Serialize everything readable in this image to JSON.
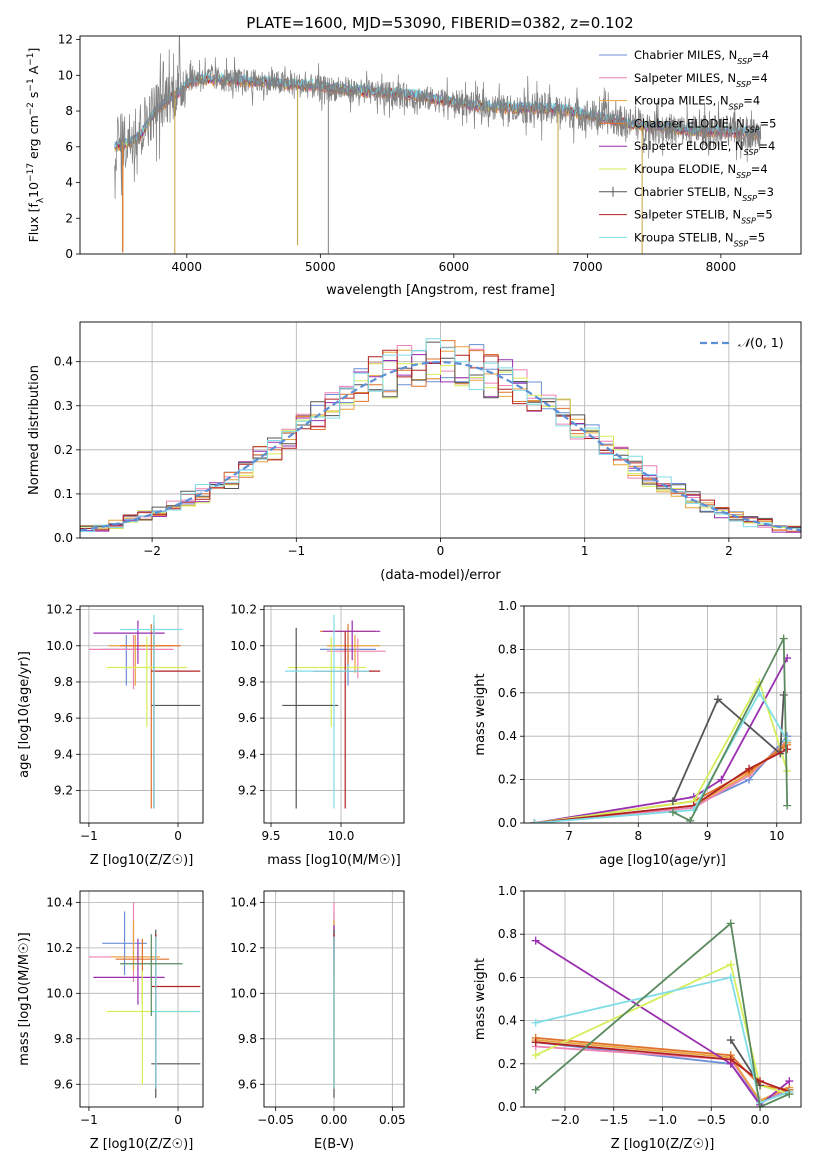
{
  "figure": {
    "suptitle": "PLATE=1600, MJD=53090, FIBERID=0382, z=0.102"
  },
  "series_names": [
    "Chabrier MILES, N_SSP=4",
    "Salpeter MILES, N_SSP=4",
    "Kroupa MILES, N_SSP=4",
    "Chabrier ELODIE, N_SSP=5",
    "Salpeter ELODIE, N_SSP=4",
    "Kroupa ELODIE, N_SSP=4",
    "Chabrier STELIB, N_SSP=3",
    "Salpeter STELIB, N_SSP=5",
    "Kroupa STELIB, N_SSP=5"
  ],
  "series_colors": [
    "#6b8fd6",
    "#ee82b4",
    "#e8a33c",
    "#e0732c",
    "#9a2fb0",
    "#d5ee5a",
    "#555555",
    "#b22222",
    "#7fdde6"
  ],
  "chart_data": [
    {
      "id": "spectrum",
      "type": "line",
      "title": "",
      "xlabel": "wavelength [Angstrom, rest frame]",
      "ylabel": "Flux [f_λ 10^-17 erg cm^-2 s^-1 A^-1]",
      "xlim": [
        3200,
        8600
      ],
      "ylim": [
        0,
        12.2
      ],
      "xticks": [
        4000,
        5000,
        6000,
        7000,
        8000
      ],
      "yticks": [
        0,
        2,
        4,
        6,
        8,
        10,
        12
      ],
      "legend_position": "top-right",
      "legend": [
        "Chabrier MILES, N_SSP=4",
        "Salpeter MILES, N_SSP=4",
        "Kroupa MILES, N_SSP=4",
        "Chabrier ELODIE, N_SSP=5",
        "Salpeter ELODIE, N_SSP=4",
        "Kroupa ELODIE, N_SSP=4",
        "Chabrier STELIB, N_SSP=3",
        "Salpeter STELIB, N_SSP=5",
        "Kroupa STELIB, N_SSP=5"
      ],
      "data_continuum": {
        "x": [
          3450,
          3550,
          3650,
          3750,
          3850,
          3950,
          4000,
          4100,
          4200,
          4400,
          4600,
          4800,
          5000,
          5200,
          5400,
          5600,
          5800,
          6000,
          6200,
          6400,
          6600,
          6800,
          7000,
          7200,
          7400,
          7600,
          7800,
          8000,
          8200,
          8300
        ],
        "y": [
          6.1,
          6.4,
          7.0,
          8.0,
          8.8,
          9.3,
          9.8,
          9.9,
          9.8,
          9.7,
          9.6,
          9.5,
          9.3,
          9.2,
          9.0,
          8.9,
          8.7,
          8.5,
          8.3,
          8.2,
          8.2,
          8.0,
          7.8,
          7.5,
          7.2,
          7.0,
          6.9,
          6.9,
          6.8,
          6.7
        ]
      },
      "model_continuum": {
        "x": [
          3450,
          3550,
          3650,
          3750,
          3850,
          3950,
          4000,
          4100,
          4200,
          4400,
          4600,
          4800,
          5000,
          5200,
          5400,
          5600,
          5800,
          6000,
          6200,
          6400,
          6600,
          6800,
          7000,
          7200,
          7400,
          7600,
          7800,
          8000,
          8200,
          8300
        ],
        "y": [
          6.0,
          6.2,
          6.6,
          7.9,
          8.6,
          9.1,
          9.5,
          9.8,
          9.8,
          9.7,
          9.6,
          9.5,
          9.4,
          9.2,
          9.1,
          9.0,
          8.8,
          8.5,
          8.3,
          8.2,
          8.2,
          8.1,
          7.8,
          7.5,
          7.2,
          7.1,
          6.9,
          6.9,
          6.8,
          6.7
        ]
      },
      "spikes": [
        {
          "x": 3520,
          "y": 0.1
        },
        {
          "x": 3910,
          "y": 0.0
        },
        {
          "x": 6780,
          "y": 0.0
        },
        {
          "x": 7410,
          "y": 0.0
        },
        {
          "x": 5060,
          "y": 0.0
        },
        {
          "x": 4830,
          "y": 0.5
        }
      ]
    },
    {
      "id": "residuals",
      "type": "line",
      "title": "",
      "xlabel": "(data-model)/error",
      "ylabel": "Normed distribution",
      "xlim": [
        -2.5,
        2.5
      ],
      "ylim": [
        0,
        0.49
      ],
      "xticks": [
        -2,
        -1,
        0,
        1,
        2
      ],
      "yticks": [
        0.0,
        0.1,
        0.2,
        0.3,
        0.4
      ],
      "legend": [
        "N(0,1)"
      ],
      "legend_position": "top-right",
      "bin_width": 0.1
    },
    {
      "id": "age_vs_Z",
      "type": "scatter",
      "xlabel": "Z [log10(Z/Z☉)]",
      "ylabel": "age [log10(age/yr)]",
      "xlim": [
        -1.1,
        0.28
      ],
      "ylim": [
        9.02,
        10.22
      ],
      "xticks": [
        -1,
        0
      ],
      "yticks": [
        9.2,
        9.4,
        9.6,
        9.8,
        10.0,
        10.2
      ],
      "points": [
        {
          "s": 0,
          "x": -0.58,
          "y": 9.98,
          "xlo": -0.85,
          "xhi": -0.3,
          "ylo": 9.78,
          "yhi": 10.06
        },
        {
          "s": 1,
          "x": -0.5,
          "y": 9.98,
          "xlo": -1.0,
          "xhi": -0.05,
          "ylo": 9.76,
          "yhi": 10.06
        },
        {
          "s": 2,
          "x": -0.48,
          "y": 10.0,
          "xlo": -0.78,
          "xhi": -0.05,
          "ylo": 9.78,
          "yhi": 10.06
        },
        {
          "s": 3,
          "x": -0.3,
          "y": 10.0,
          "xlo": -0.65,
          "xhi": 0.03,
          "ylo": 9.1,
          "yhi": 10.12
        },
        {
          "s": 4,
          "x": -0.45,
          "y": 10.07,
          "xlo": -0.95,
          "xhi": -0.15,
          "ylo": 9.9,
          "yhi": 10.14
        },
        {
          "s": 5,
          "x": -0.35,
          "y": 9.88,
          "xlo": -0.8,
          "xhi": 0.1,
          "ylo": 9.55,
          "yhi": 10.05
        },
        {
          "s": 6,
          "x": -0.27,
          "y": 9.67,
          "xlo": -0.3,
          "xhi": 0.25,
          "ylo": 9.1,
          "yhi": 10.1
        },
        {
          "s": 7,
          "x": -0.27,
          "y": 9.86,
          "xlo": -0.3,
          "xhi": 0.25,
          "ylo": 9.1,
          "yhi": 10.13
        },
        {
          "s": 8,
          "x": -0.27,
          "y": 10.09,
          "xlo": -0.65,
          "xhi": 0.05,
          "ylo": 9.1,
          "yhi": 10.17
        }
      ]
    },
    {
      "id": "age_vs_mass",
      "type": "scatter",
      "xlabel": "mass [log10(M/M☉)]",
      "ylabel": "",
      "xlim": [
        9.45,
        10.45
      ],
      "ylim": [
        9.02,
        10.22
      ],
      "xticks": [
        9.5,
        10.0
      ],
      "yticks": [
        9.2,
        9.4,
        9.6,
        9.8,
        10.0,
        10.2
      ],
      "points": [
        {
          "s": 0,
          "x": 10.05,
          "y": 9.98,
          "xlo": 9.85,
          "xhi": 10.25,
          "ylo": 9.78,
          "yhi": 10.06
        },
        {
          "s": 1,
          "x": 10.12,
          "y": 9.97,
          "xlo": 9.9,
          "xhi": 10.32,
          "ylo": 9.82,
          "yhi": 10.04
        },
        {
          "s": 2,
          "x": 10.1,
          "y": 10.0,
          "xlo": 9.9,
          "xhi": 10.28,
          "ylo": 9.85,
          "yhi": 10.06
        },
        {
          "s": 3,
          "x": 10.05,
          "y": 10.08,
          "xlo": 9.85,
          "xhi": 10.25,
          "ylo": 9.9,
          "yhi": 10.12
        },
        {
          "s": 4,
          "x": 10.08,
          "y": 10.08,
          "xlo": 9.87,
          "xhi": 10.28,
          "ylo": 9.92,
          "yhi": 10.14
        },
        {
          "s": 5,
          "x": 9.93,
          "y": 9.88,
          "xlo": 9.62,
          "xhi": 10.18,
          "ylo": 9.55,
          "yhi": 10.05
        },
        {
          "s": 6,
          "x": 9.68,
          "y": 9.67,
          "xlo": 9.58,
          "xhi": 9.98,
          "ylo": 9.1,
          "yhi": 10.1
        },
        {
          "s": 7,
          "x": 10.03,
          "y": 9.86,
          "xlo": 9.8,
          "xhi": 10.28,
          "ylo": 9.1,
          "yhi": 10.08
        },
        {
          "s": 8,
          "x": 9.95,
          "y": 9.86,
          "xlo": 9.6,
          "xhi": 10.2,
          "ylo": 9.1,
          "yhi": 10.17
        }
      ]
    },
    {
      "id": "massweight_vs_age",
      "type": "line",
      "xlabel": "age [log10(age/yr)]",
      "ylabel": "mass weight",
      "xlim": [
        6.35,
        10.35
      ],
      "ylim": [
        0,
        1.0
      ],
      "xticks": [
        7,
        8,
        9,
        10
      ],
      "yticks": [
        0.0,
        0.2,
        0.4,
        0.6,
        0.8,
        1.0
      ],
      "series": [
        {
          "s": 0,
          "x": [
            6.5,
            8.8,
            9.6,
            10.15
          ],
          "y": [
            0.0,
            0.08,
            0.2,
            0.4
          ]
        },
        {
          "s": 1,
          "x": [
            6.5,
            8.8,
            9.6,
            10.15
          ],
          "y": [
            0.0,
            0.07,
            0.22,
            0.38
          ]
        },
        {
          "s": 2,
          "x": [
            6.5,
            8.8,
            9.6,
            10.15
          ],
          "y": [
            0.0,
            0.08,
            0.23,
            0.37
          ]
        },
        {
          "s": 3,
          "x": [
            6.5,
            8.8,
            9.6,
            10.15
          ],
          "y": [
            0.0,
            0.1,
            0.24,
            0.36
          ]
        },
        {
          "s": 4,
          "x": [
            6.5,
            8.8,
            9.2,
            10.15
          ],
          "y": [
            0.0,
            0.12,
            0.2,
            0.76
          ]
        },
        {
          "s": 5,
          "x": [
            6.5,
            8.8,
            9.75,
            10.15
          ],
          "y": [
            0.0,
            0.1,
            0.65,
            0.24
          ]
        },
        {
          "s": 6,
          "x": [
            8.5,
            9.15,
            10.05,
            10.1
          ],
          "y": [
            0.1,
            0.57,
            0.32,
            0.59
          ]
        },
        {
          "s": 7,
          "x": [
            6.5,
            8.8,
            9.6,
            10.15
          ],
          "y": [
            0.0,
            0.08,
            0.25,
            0.34
          ]
        },
        {
          "s": 8,
          "x": [
            6.5,
            8.8,
            9.75,
            10.15
          ],
          "y": [
            0.0,
            0.06,
            0.6,
            0.38
          ]
        },
        {
          "s": 9,
          "x": [
            8.5,
            8.75,
            10.1,
            10.15
          ],
          "y": [
            0.05,
            0.01,
            0.85,
            0.08
          ]
        }
      ]
    },
    {
      "id": "mass_vs_Z",
      "type": "scatter",
      "xlabel": "Z [log10(Z/Z☉)]",
      "ylabel": "mass [log10(M/M☉)]",
      "xlim": [
        -1.1,
        0.28
      ],
      "ylim": [
        9.5,
        10.45
      ],
      "xticks": [
        -1,
        0
      ],
      "yticks": [
        9.6,
        9.8,
        10.0,
        10.2,
        10.4
      ],
      "points": [
        {
          "s": 0,
          "x": -0.6,
          "y": 10.22,
          "xlo": -0.85,
          "xhi": -0.35,
          "ylo": 10.08,
          "yhi": 10.36
        },
        {
          "s": 1,
          "x": -0.5,
          "y": 10.16,
          "xlo": -1.0,
          "xhi": -0.25,
          "ylo": 10.05,
          "yhi": 10.4
        },
        {
          "s": 2,
          "x": -0.5,
          "y": 10.16,
          "xlo": -0.75,
          "xhi": -0.2,
          "ylo": 10.1,
          "yhi": 10.32
        },
        {
          "s": 3,
          "x": -0.4,
          "y": 10.15,
          "xlo": -0.7,
          "xhi": -0.1,
          "ylo": 9.95,
          "yhi": 10.24
        },
        {
          "s": 4,
          "x": -0.45,
          "y": 10.07,
          "xlo": -0.95,
          "xhi": -0.15,
          "ylo": 9.95,
          "yhi": 10.24
        },
        {
          "s": 5,
          "x": -0.4,
          "y": 9.92,
          "xlo": -0.8,
          "xhi": 0.2,
          "ylo": 9.6,
          "yhi": 10.1
        },
        {
          "s": 6,
          "x": -0.25,
          "y": 9.69,
          "xlo": -0.3,
          "xhi": 0.25,
          "ylo": 9.54,
          "yhi": 10.28
        },
        {
          "s": 7,
          "x": -0.25,
          "y": 10.03,
          "xlo": -0.3,
          "xhi": 0.25,
          "ylo": 9.58,
          "yhi": 10.26
        },
        {
          "s": 8,
          "x": -0.25,
          "y": 9.92,
          "xlo": -0.3,
          "xhi": 0.25,
          "ylo": 9.58,
          "yhi": 10.25
        },
        {
          "s": 9,
          "x": -0.3,
          "y": 10.13,
          "xlo": -0.65,
          "xhi": 0.05,
          "ylo": 9.9,
          "yhi": 10.26
        }
      ]
    },
    {
      "id": "mass_vs_EBV",
      "type": "scatter",
      "xlabel": "E(B-V)",
      "ylabel": "",
      "xlim": [
        -0.06,
        0.06
      ],
      "ylim": [
        9.5,
        10.45
      ],
      "xticks": [
        -0.05,
        0.0,
        0.05
      ],
      "yticks": [
        9.6,
        9.8,
        10.0,
        10.2,
        10.4
      ],
      "points": [
        {
          "s": 0,
          "x": 0,
          "y": 10.22,
          "ylo": 10.08,
          "yhi": 10.36
        },
        {
          "s": 1,
          "x": 0,
          "y": 10.2,
          "ylo": 10.05,
          "yhi": 10.4
        },
        {
          "s": 2,
          "x": 0,
          "y": 10.2,
          "ylo": 10.1,
          "yhi": 10.32
        },
        {
          "s": 4,
          "x": 0,
          "y": 10.2,
          "ylo": 10.15,
          "yhi": 10.3
        },
        {
          "s": 5,
          "x": 0,
          "y": 9.92,
          "ylo": 9.6,
          "yhi": 10.1
        },
        {
          "s": 6,
          "x": 0,
          "y": 9.69,
          "ylo": 9.54,
          "yhi": 10.28
        },
        {
          "s": 7,
          "x": 0,
          "y": 10.03,
          "ylo": 9.58,
          "yhi": 10.26
        },
        {
          "s": 8,
          "x": 0,
          "y": 9.92,
          "ylo": 9.58,
          "yhi": 10.25
        }
      ]
    },
    {
      "id": "massweight_vs_Z",
      "type": "line",
      "xlabel": "Z [log10(Z/Z☉)]",
      "ylabel": "mass weight",
      "xlim": [
        -2.42,
        0.42
      ],
      "ylim": [
        0,
        1.0
      ],
      "xticks": [
        -2.0,
        -1.5,
        -1.0,
        -0.5,
        0.0
      ],
      "yticks": [
        0.0,
        0.2,
        0.4,
        0.6,
        0.8,
        1.0
      ],
      "series": [
        {
          "s": 0,
          "x": [
            -2.3,
            -0.3,
            0.0,
            0.3
          ],
          "y": [
            0.3,
            0.2,
            0.02,
            0.08
          ]
        },
        {
          "s": 1,
          "x": [
            -2.3,
            -0.3,
            0.0,
            0.3
          ],
          "y": [
            0.28,
            0.22,
            0.03,
            0.08
          ]
        },
        {
          "s": 2,
          "x": [
            -2.3,
            -0.3,
            0.0,
            0.3
          ],
          "y": [
            0.31,
            0.23,
            0.03,
            0.09
          ]
        },
        {
          "s": 3,
          "x": [
            -2.3,
            -0.3,
            0.0,
            0.3
          ],
          "y": [
            0.32,
            0.24,
            0.1,
            0.08
          ]
        },
        {
          "s": 4,
          "x": [
            -2.3,
            -0.3,
            0.0,
            0.3
          ],
          "y": [
            0.77,
            0.2,
            0.01,
            0.12
          ]
        },
        {
          "s": 5,
          "x": [
            -2.3,
            -0.3,
            0.0,
            0.3
          ],
          "y": [
            0.24,
            0.66,
            0.1,
            0.06
          ]
        },
        {
          "s": 6,
          "x": [
            -0.3,
            0.0
          ],
          "y": [
            0.31,
            0.1
          ]
        },
        {
          "s": 7,
          "x": [
            -2.3,
            -0.3,
            0.0,
            0.3
          ],
          "y": [
            0.3,
            0.22,
            0.12,
            0.07
          ]
        },
        {
          "s": 8,
          "x": [
            -2.3,
            -0.3,
            0.0,
            0.3
          ],
          "y": [
            0.39,
            0.6,
            0.02,
            0.07
          ]
        },
        {
          "s": 9,
          "x": [
            -2.3,
            -0.3,
            0.0,
            0.3
          ],
          "y": [
            0.08,
            0.85,
            0.0,
            0.06
          ]
        }
      ]
    }
  ]
}
